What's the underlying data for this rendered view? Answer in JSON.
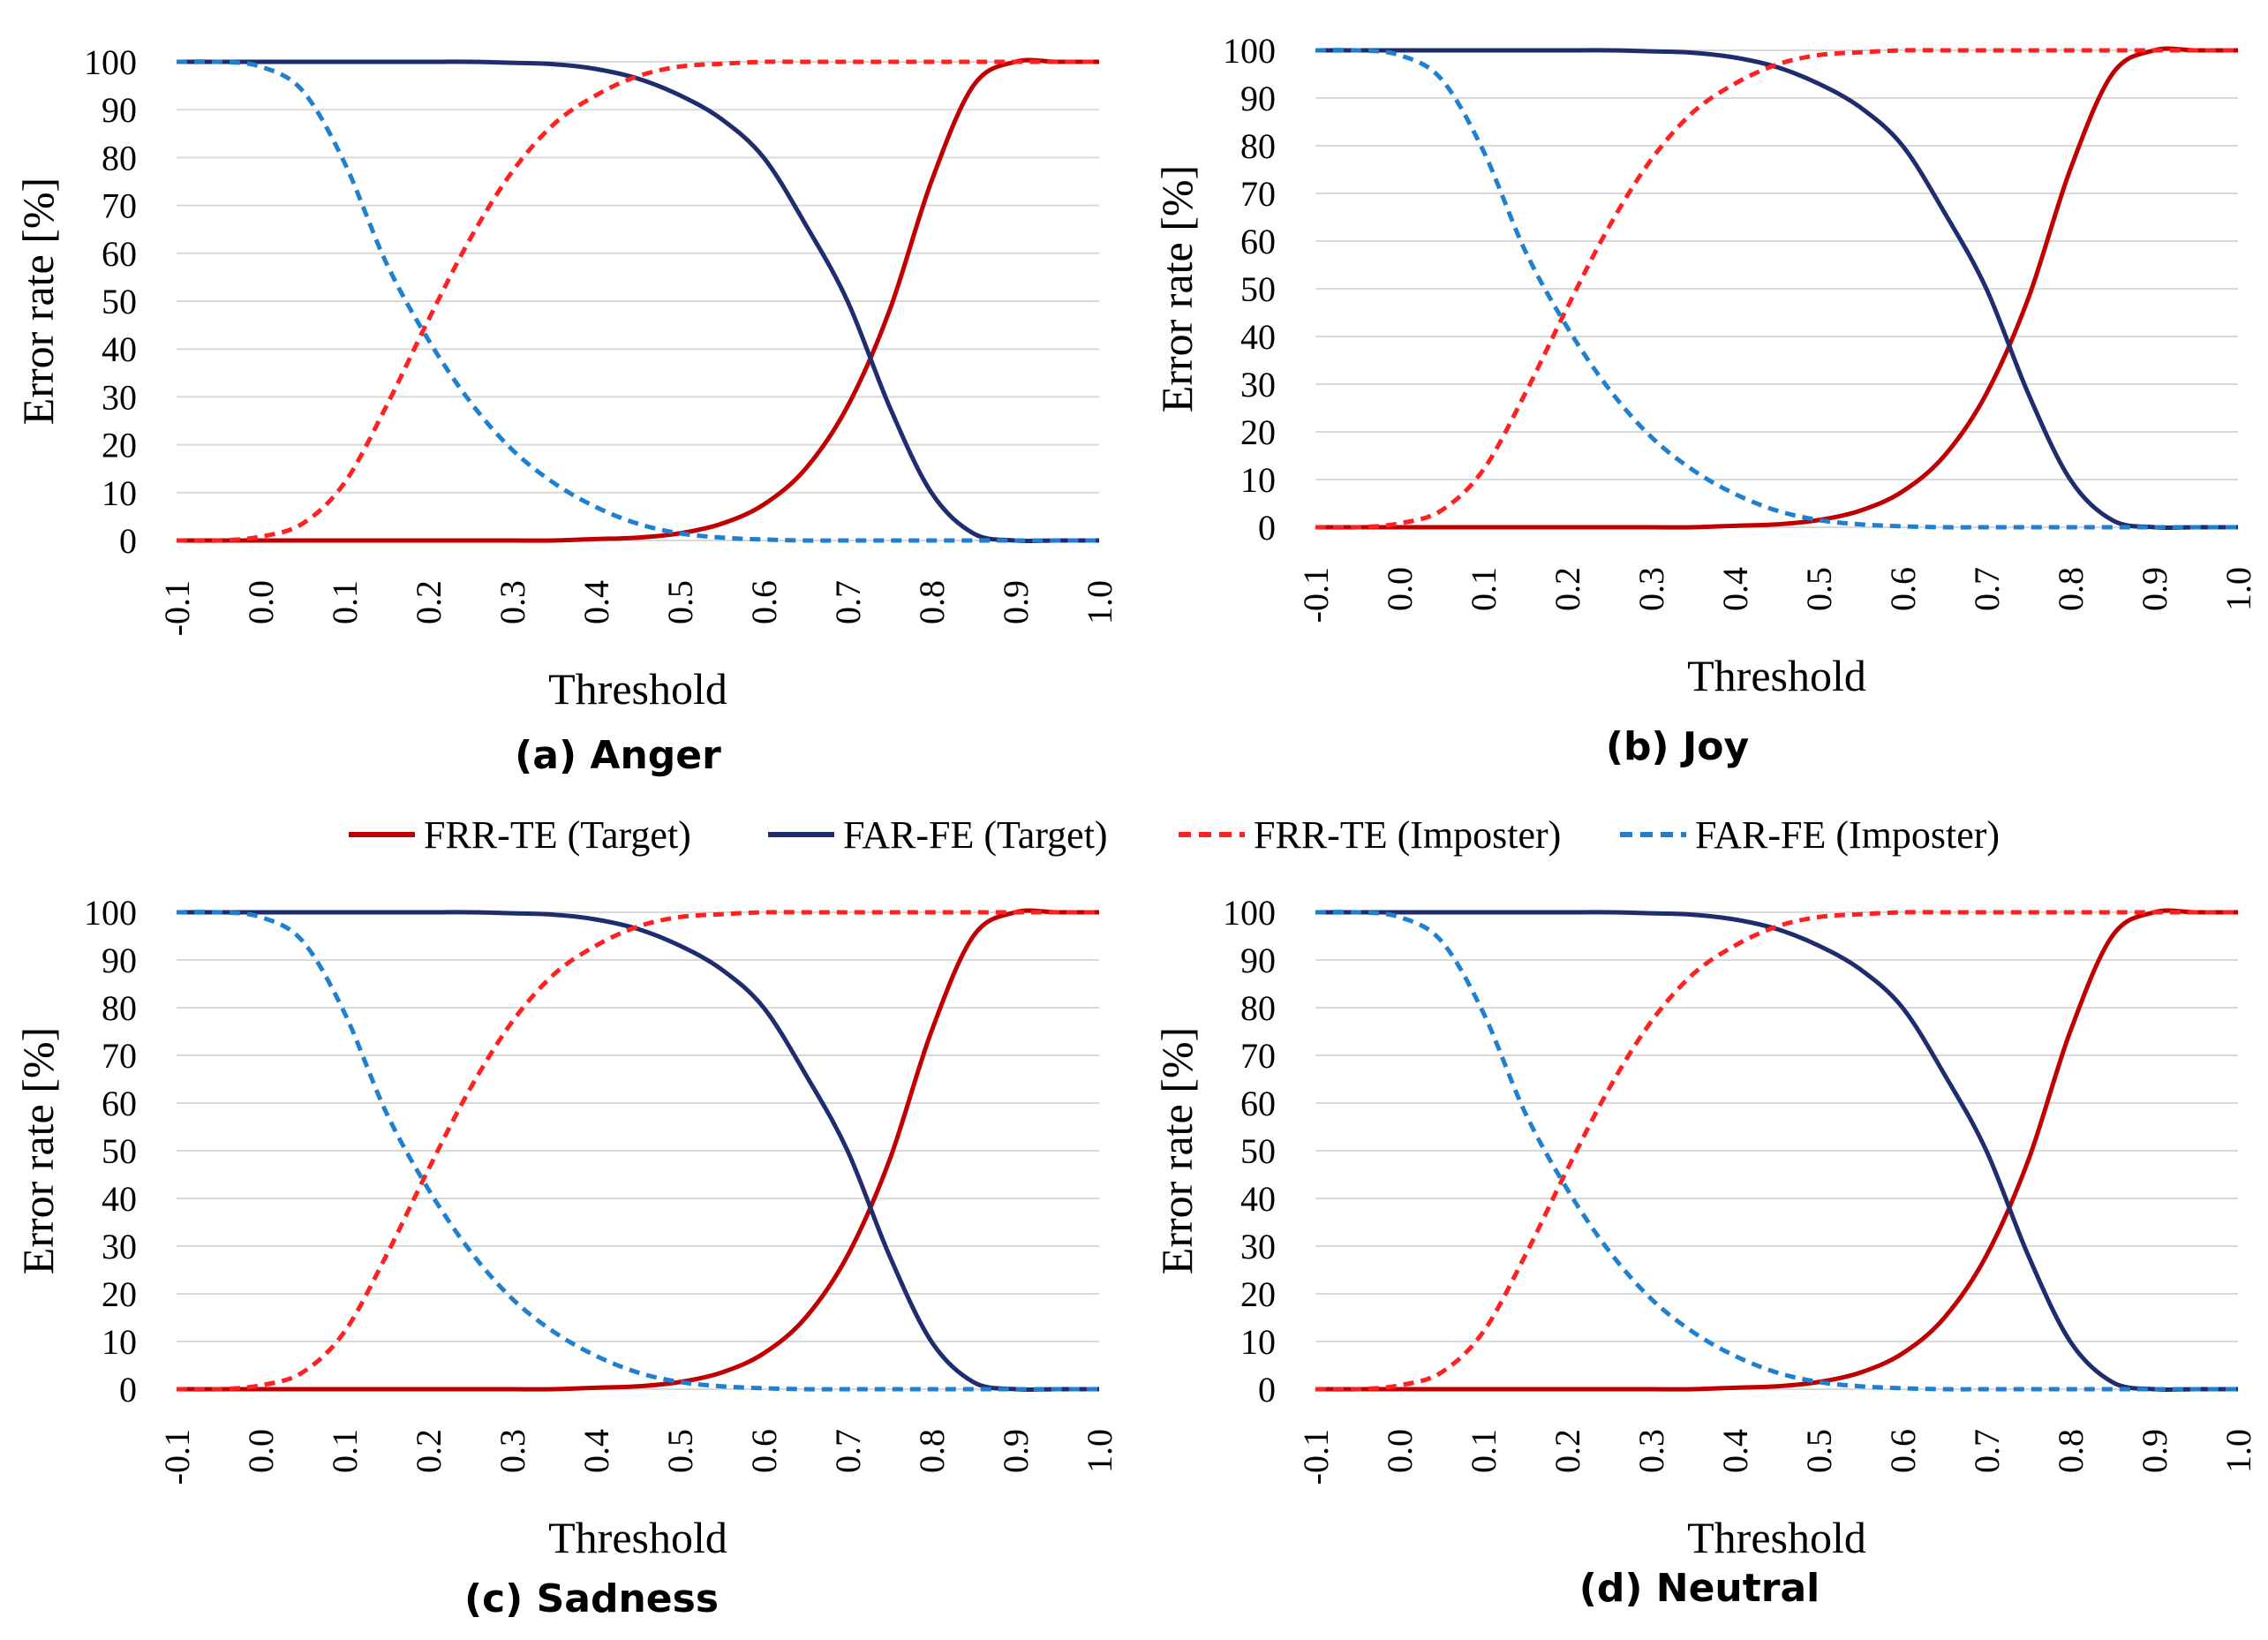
{
  "legend": {
    "items": [
      {
        "label": "FRR-TE (Target)",
        "color": "#c00000",
        "dash": "solid"
      },
      {
        "label": "FAR-FE (Target)",
        "color": "#1f2d6e",
        "dash": "solid"
      },
      {
        "label": "FRR-TE (Imposter)",
        "color": "#ff2020",
        "dash": "dashed"
      },
      {
        "label": "FAR-FE (Imposter)",
        "color": "#1f80d0",
        "dash": "dashed"
      }
    ]
  },
  "chart_data": [
    {
      "type": "line",
      "caption": "(a) Anger",
      "xlabel": "Threshold",
      "ylabel": "Error rate [%]",
      "x_ticks": [
        "-0.1",
        "0.0",
        "0.1",
        "0.2",
        "0.3",
        "0.4",
        "0.5",
        "0.6",
        "0.7",
        "0.8",
        "0.9",
        "1.0"
      ],
      "y_ticks": [
        "0",
        "10",
        "20",
        "30",
        "40",
        "50",
        "60",
        "70",
        "80",
        "90",
        "100"
      ],
      "xlim": [
        -0.1,
        1.0
      ],
      "ylim": [
        0,
        100
      ],
      "grid": true,
      "x": [
        -0.1,
        -0.05,
        0.0,
        0.05,
        0.1,
        0.15,
        0.2,
        0.25,
        0.3,
        0.35,
        0.4,
        0.45,
        0.5,
        0.55,
        0.6,
        0.65,
        0.7,
        0.75,
        0.8,
        0.85,
        0.9,
        0.95,
        1.0
      ],
      "series": [
        {
          "name": "FRR-TE (Target)",
          "values": [
            0,
            0,
            0,
            0,
            0,
            0,
            0,
            0,
            0,
            0,
            0.3,
            0.6,
            1.5,
            3.5,
            7.5,
            15,
            28,
            48,
            75,
            95,
            100,
            100,
            100
          ]
        },
        {
          "name": "FAR-FE (Target)",
          "values": [
            100,
            100,
            100,
            100,
            100,
            100,
            100,
            100,
            99.8,
            99.5,
            98.5,
            96.5,
            93,
            88,
            80,
            66,
            50,
            28,
            10,
            1.5,
            0,
            0,
            0
          ]
        },
        {
          "name": "FRR-TE (Imposter)",
          "values": [
            0,
            0,
            0.8,
            3.5,
            12,
            28,
            46,
            63,
            77,
            87,
            93,
            97,
            99,
            99.6,
            100,
            100,
            100,
            100,
            100,
            100,
            100,
            100,
            100
          ]
        },
        {
          "name": "FAR-FE (Imposter)",
          "values": [
            100,
            100,
            99,
            94,
            79,
            58,
            42,
            29,
            19,
            12,
            7,
            3.5,
            1.5,
            0.6,
            0.2,
            0,
            0,
            0,
            0,
            0,
            0,
            0,
            0
          ]
        }
      ]
    },
    {
      "type": "line",
      "caption": "(b) Joy",
      "xlabel": "Threshold",
      "ylabel": "Error rate [%]",
      "x_ticks": [
        "-0.1",
        "0.0",
        "0.1",
        "0.2",
        "0.3",
        "0.4",
        "0.5",
        "0.6",
        "0.7",
        "0.8",
        "0.9",
        "1.0"
      ],
      "y_ticks": [
        "0",
        "10",
        "20",
        "30",
        "40",
        "50",
        "60",
        "70",
        "80",
        "90",
        "100"
      ],
      "xlim": [
        -0.1,
        1.0
      ],
      "ylim": [
        0,
        100
      ],
      "grid": true,
      "x": [
        -0.1,
        -0.05,
        0.0,
        0.05,
        0.1,
        0.15,
        0.2,
        0.25,
        0.3,
        0.35,
        0.4,
        0.45,
        0.5,
        0.55,
        0.6,
        0.65,
        0.7,
        0.75,
        0.8,
        0.85,
        0.9,
        0.95,
        1.0
      ],
      "series": [
        {
          "name": "FRR-TE (Target)",
          "values": [
            0,
            0,
            0,
            0,
            0,
            0,
            0,
            0,
            0,
            0,
            0.3,
            0.6,
            1.5,
            3.5,
            7.5,
            15,
            28,
            48,
            75,
            95,
            100,
            100,
            100
          ]
        },
        {
          "name": "FAR-FE (Target)",
          "values": [
            100,
            100,
            100,
            100,
            100,
            100,
            100,
            100,
            99.8,
            99.5,
            98.5,
            96.5,
            93,
            88,
            80,
            66,
            50,
            28,
            10,
            1.5,
            0,
            0,
            0
          ]
        },
        {
          "name": "FRR-TE (Imposter)",
          "values": [
            0,
            0,
            0.8,
            3.5,
            12,
            28,
            46,
            63,
            77,
            87,
            93,
            97,
            99,
            99.6,
            100,
            100,
            100,
            100,
            100,
            100,
            100,
            100,
            100
          ]
        },
        {
          "name": "FAR-FE (Imposter)",
          "values": [
            100,
            100,
            99,
            94,
            79,
            58,
            42,
            29,
            19,
            12,
            7,
            3.5,
            1.5,
            0.6,
            0.2,
            0,
            0,
            0,
            0,
            0,
            0,
            0,
            0
          ]
        }
      ]
    },
    {
      "type": "line",
      "caption": "(c) Sadness",
      "xlabel": "Threshold",
      "ylabel": "Error rate [%]",
      "x_ticks": [
        "-0.1",
        "0.0",
        "0.1",
        "0.2",
        "0.3",
        "0.4",
        "0.5",
        "0.6",
        "0.7",
        "0.8",
        "0.9",
        "1.0"
      ],
      "y_ticks": [
        "0",
        "10",
        "20",
        "30",
        "40",
        "50",
        "60",
        "70",
        "80",
        "90",
        "100"
      ],
      "xlim": [
        -0.1,
        1.0
      ],
      "ylim": [
        0,
        100
      ],
      "grid": true,
      "x": [
        -0.1,
        -0.05,
        0.0,
        0.05,
        0.1,
        0.15,
        0.2,
        0.25,
        0.3,
        0.35,
        0.4,
        0.45,
        0.5,
        0.55,
        0.6,
        0.65,
        0.7,
        0.75,
        0.8,
        0.85,
        0.9,
        0.95,
        1.0
      ],
      "series": [
        {
          "name": "FRR-TE (Target)",
          "values": [
            0,
            0,
            0,
            0,
            0,
            0,
            0,
            0,
            0,
            0,
            0.3,
            0.6,
            1.5,
            3.5,
            7.5,
            15,
            28,
            48,
            75,
            95,
            100,
            100,
            100
          ]
        },
        {
          "name": "FAR-FE (Target)",
          "values": [
            100,
            100,
            100,
            100,
            100,
            100,
            100,
            100,
            99.8,
            99.5,
            98.5,
            96.5,
            93,
            88,
            80,
            66,
            50,
            28,
            10,
            1.5,
            0,
            0,
            0
          ]
        },
        {
          "name": "FRR-TE (Imposter)",
          "values": [
            0,
            0,
            0.8,
            3.5,
            12,
            28,
            46,
            63,
            77,
            87,
            93,
            97,
            99,
            99.6,
            100,
            100,
            100,
            100,
            100,
            100,
            100,
            100,
            100
          ]
        },
        {
          "name": "FAR-FE (Imposter)",
          "values": [
            100,
            100,
            99,
            94,
            79,
            58,
            42,
            29,
            19,
            12,
            7,
            3.5,
            1.5,
            0.6,
            0.2,
            0,
            0,
            0,
            0,
            0,
            0,
            0,
            0
          ]
        }
      ]
    },
    {
      "type": "line",
      "caption": "(d) Neutral",
      "xlabel": "Threshold",
      "ylabel": "Error rate [%]",
      "x_ticks": [
        "-0.1",
        "0.0",
        "0.1",
        "0.2",
        "0.3",
        "0.4",
        "0.5",
        "0.6",
        "0.7",
        "0.8",
        "0.9",
        "1.0"
      ],
      "y_ticks": [
        "0",
        "10",
        "20",
        "30",
        "40",
        "50",
        "60",
        "70",
        "80",
        "90",
        "100"
      ],
      "xlim": [
        -0.1,
        1.0
      ],
      "ylim": [
        0,
        100
      ],
      "grid": true,
      "x": [
        -0.1,
        -0.05,
        0.0,
        0.05,
        0.1,
        0.15,
        0.2,
        0.25,
        0.3,
        0.35,
        0.4,
        0.45,
        0.5,
        0.55,
        0.6,
        0.65,
        0.7,
        0.75,
        0.8,
        0.85,
        0.9,
        0.95,
        1.0
      ],
      "series": [
        {
          "name": "FRR-TE (Target)",
          "values": [
            0,
            0,
            0,
            0,
            0,
            0,
            0,
            0,
            0,
            0,
            0.3,
            0.6,
            1.5,
            3.5,
            7.5,
            15,
            28,
            48,
            75,
            95,
            100,
            100,
            100
          ]
        },
        {
          "name": "FAR-FE (Target)",
          "values": [
            100,
            100,
            100,
            100,
            100,
            100,
            100,
            100,
            99.8,
            99.5,
            98.5,
            96.5,
            93,
            88,
            80,
            66,
            50,
            28,
            10,
            1.5,
            0,
            0,
            0
          ]
        },
        {
          "name": "FRR-TE (Imposter)",
          "values": [
            0,
            0,
            0.8,
            3.5,
            12,
            28,
            46,
            63,
            77,
            87,
            93,
            97,
            99,
            99.6,
            100,
            100,
            100,
            100,
            100,
            100,
            100,
            100,
            100
          ]
        },
        {
          "name": "FAR-FE (Imposter)",
          "values": [
            100,
            100,
            99,
            94,
            79,
            58,
            42,
            29,
            19,
            12,
            7,
            3.5,
            1.5,
            0.6,
            0.2,
            0,
            0,
            0,
            0,
            0,
            0,
            0,
            0
          ]
        }
      ]
    }
  ]
}
